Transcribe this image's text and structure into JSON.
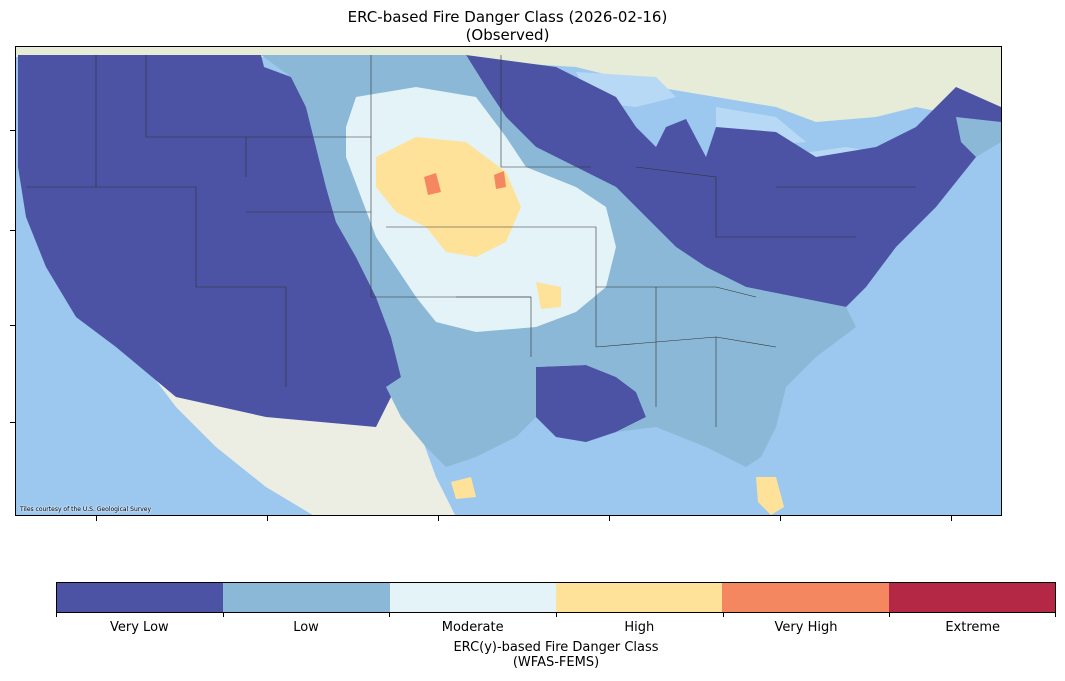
{
  "figure": {
    "title_line1": "ERC-based Fire Danger Class (2026-02-16)",
    "title_line2": "(Observed)",
    "attribution": "Tiles courtesy of the U.S. Geological Survey"
  },
  "colors": {
    "ocean": "#9cc8ef",
    "land_foreign": "#e6ecd8",
    "water_lakes": "#b8d9f5",
    "very_low": "#4c52a4",
    "low": "#8ab8d6",
    "moderate": "#e4f3f8",
    "high": "#fee29a",
    "very_high": "#f4875f",
    "extreme": "#b52845",
    "border": "#333333"
  },
  "legend": {
    "title_line1": "ERC(y)-based Fire Danger Class",
    "title_line2": "(WFAS-FEMS)",
    "classes": [
      {
        "label": "Very Low",
        "color": "#4c52a4"
      },
      {
        "label": "Low",
        "color": "#8ab8d6"
      },
      {
        "label": "Moderate",
        "color": "#e4f3f8"
      },
      {
        "label": "High",
        "color": "#fee29a"
      },
      {
        "label": "Very High",
        "color": "#f4875f"
      },
      {
        "label": "Extreme",
        "color": "#b52845"
      }
    ]
  }
}
